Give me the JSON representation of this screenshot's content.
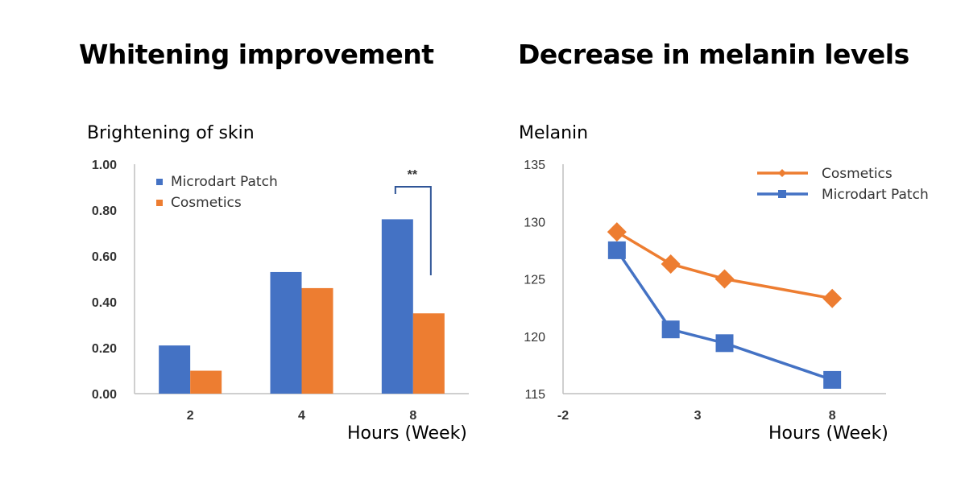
{
  "colors": {
    "blue": "#4472c4",
    "orange": "#ed7d31",
    "axis": "#bfbfbf",
    "bracket": "#2f5597"
  },
  "chart_data": [
    {
      "type": "bar",
      "title": "Whitening improvement",
      "ylabel": "Brightening of skin",
      "xlabel": "Hours (Week)",
      "categories": [
        "2",
        "4",
        "8"
      ],
      "yticks": [
        "0.00",
        "0.20",
        "0.40",
        "0.60",
        "0.80",
        "1.00"
      ],
      "ylim": [
        0,
        1.0
      ],
      "legend_position": "top-left",
      "series": [
        {
          "name": "Microdart Patch",
          "color": "blue",
          "values": [
            0.21,
            0.53,
            0.76
          ]
        },
        {
          "name": "Cosmetics",
          "color": "orange",
          "values": [
            0.1,
            0.46,
            0.35
          ]
        }
      ],
      "annotation": {
        "text": "**",
        "category": "8"
      }
    },
    {
      "type": "line",
      "title": "Decrease in melanin levels",
      "ylabel": "Melanin",
      "xlabel": "Hours (Week)",
      "xticks": [
        "-2",
        "3",
        "8"
      ],
      "xlim": [
        -2,
        10
      ],
      "yticks": [
        "115",
        "120",
        "125",
        "130",
        "135"
      ],
      "ylim": [
        115,
        135
      ],
      "legend_position": "top-right",
      "series": [
        {
          "name": "Cosmetics",
          "color": "orange",
          "marker": "diamond",
          "x": [
            0,
            2,
            4,
            8
          ],
          "values": [
            129.1,
            126.3,
            125.0,
            123.3
          ]
        },
        {
          "name": "Microdart Patch",
          "color": "blue",
          "marker": "square",
          "x": [
            0,
            2,
            4,
            8
          ],
          "values": [
            127.5,
            120.6,
            119.4,
            116.2
          ]
        }
      ]
    }
  ]
}
